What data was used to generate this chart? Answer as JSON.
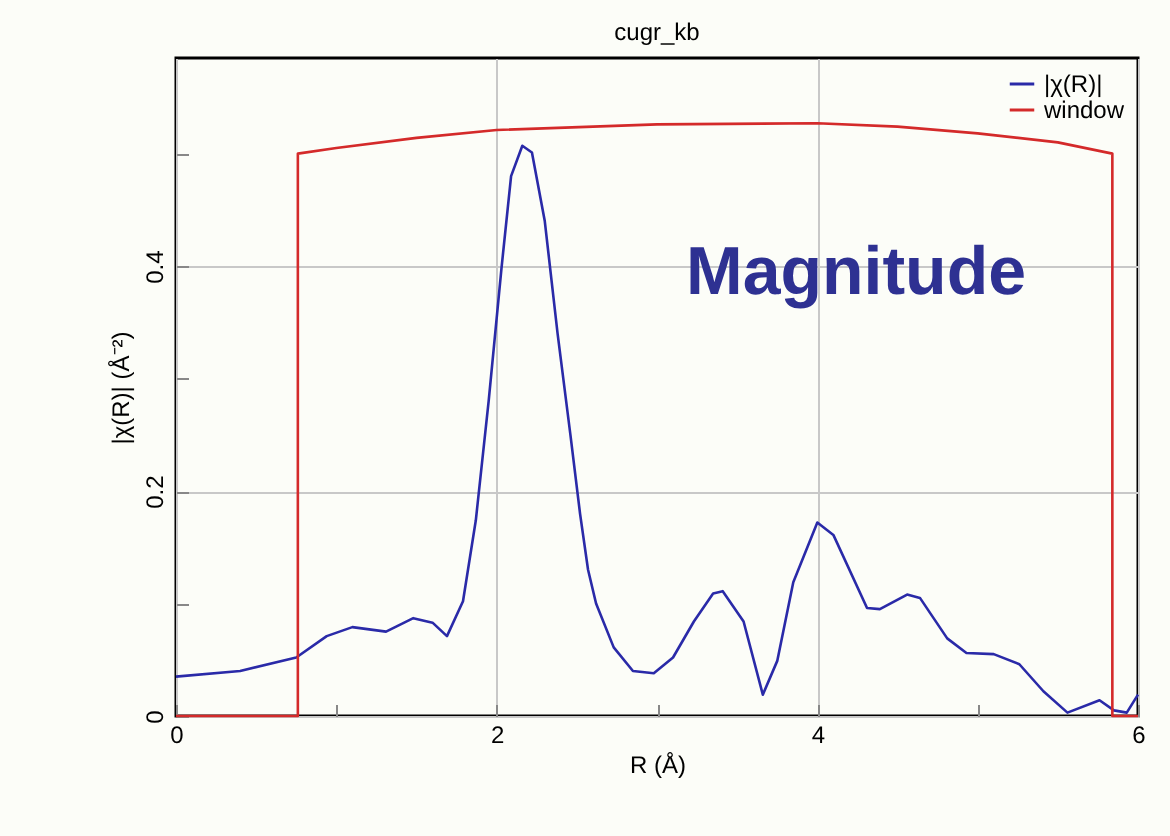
{
  "chart_data": {
    "type": "line",
    "title": "cugr_kb",
    "xlabel": "R (Å)",
    "ylabel": "|χ(R)| (Å⁻²)",
    "annotations": [
      "Magnitude"
    ],
    "xlim": [
      0,
      6
    ],
    "ylim": [
      0,
      0.585
    ],
    "xticks": [
      0,
      {
        "value": 1,
        "label": null
      },
      2,
      {
        "value": 3,
        "label": null
      },
      4,
      {
        "value": 5,
        "label": null
      },
      6
    ],
    "yticks": [
      0,
      {
        "value": 0.1,
        "label": null
      },
      0.2,
      {
        "value": 0.3,
        "label": null
      },
      0.4,
      {
        "value": 0.5,
        "label": null
      }
    ],
    "grid": true,
    "legend": "top right",
    "marker": "none",
    "line_style": "solid",
    "series": [
      {
        "name": "|χ(R)|",
        "color": "#2a2aa8",
        "x": [
          0,
          0.4,
          0.75,
          0.94,
          1.1,
          1.31,
          1.48,
          1.6,
          1.69,
          1.79,
          1.87,
          1.95,
          2.03,
          2.09,
          2.16,
          2.22,
          2.3,
          2.38,
          2.46,
          2.52,
          2.57,
          2.62,
          2.73,
          2.85,
          2.98,
          3.1,
          3.23,
          3.35,
          3.41,
          3.54,
          3.66,
          3.75,
          3.85,
          4.0,
          4.1,
          4.31,
          4.39,
          4.56,
          4.64,
          4.81,
          4.93,
          5.1,
          5.26,
          5.41,
          5.56,
          5.76,
          5.85,
          5.93,
          6.0
        ],
        "values": [
          0.035,
          0.04,
          0.052,
          0.071,
          0.079,
          0.075,
          0.087,
          0.083,
          0.071,
          0.102,
          0.174,
          0.28,
          0.398,
          0.48,
          0.507,
          0.501,
          0.44,
          0.34,
          0.25,
          0.18,
          0.13,
          0.1,
          0.061,
          0.04,
          0.038,
          0.052,
          0.084,
          0.109,
          0.111,
          0.084,
          0.019,
          0.049,
          0.119,
          0.172,
          0.161,
          0.096,
          0.095,
          0.108,
          0.105,
          0.069,
          0.056,
          0.055,
          0.046,
          0.022,
          0.003,
          0.014,
          0.005,
          0.003,
          0.019
        ]
      },
      {
        "name": "window",
        "color": "#d42a2a",
        "x": [
          0,
          0.76,
          0.76,
          1,
          1.5,
          2,
          3,
          4,
          4.5,
          5,
          5.5,
          5.84,
          5.84,
          6
        ],
        "values": [
          0,
          0,
          0.5,
          0.505,
          0.514,
          0.521,
          0.526,
          0.527,
          0.524,
          0.518,
          0.51,
          0.5,
          0,
          0
        ]
      }
    ]
  }
}
